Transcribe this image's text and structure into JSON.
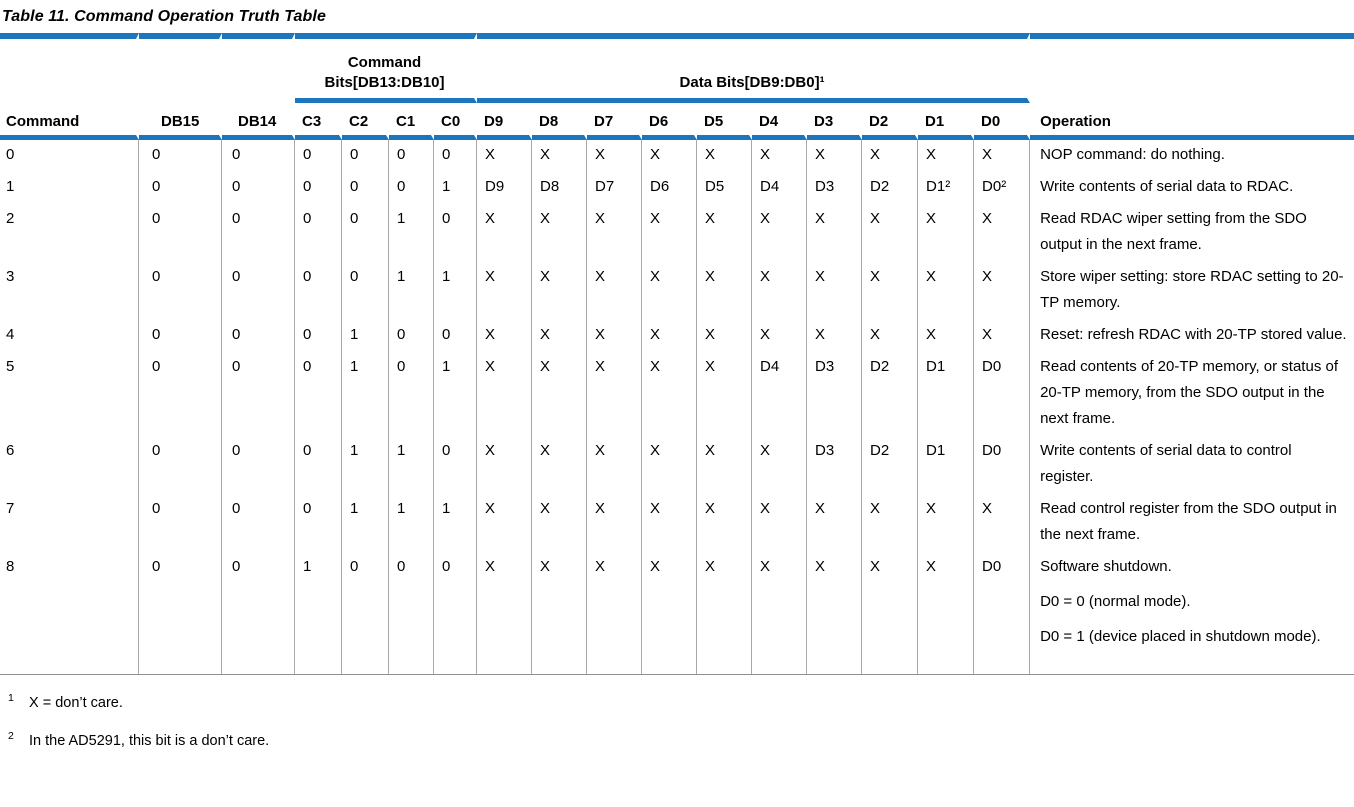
{
  "title": "Table 11. Command Operation Truth Table",
  "colors": {
    "accent_blue": "#1c76bd",
    "grid_gray": "#a8a8a8",
    "bottom_rule_gray": "#8f8f8f",
    "text": "#000000"
  },
  "table": {
    "group_headers": {
      "command_bits_line1": "Command",
      "command_bits_line2": "Bits[DB13:DB10]",
      "data_bits": "Data Bits[DB9:DB0]¹"
    },
    "columns": [
      "Command",
      "DB15",
      "DB14",
      "C3",
      "C2",
      "C1",
      "C0",
      "D9",
      "D8",
      "D7",
      "D6",
      "D5",
      "D4",
      "D3",
      "D2",
      "D1",
      "D0",
      "Operation"
    ],
    "rows": [
      {
        "cells": [
          "0",
          "0",
          "0",
          "0",
          "0",
          "0",
          "0",
          "X",
          "X",
          "X",
          "X",
          "X",
          "X",
          "X",
          "X",
          "X",
          "X"
        ],
        "operation": [
          "NOP command: do nothing."
        ]
      },
      {
        "cells": [
          "1",
          "0",
          "0",
          "0",
          "0",
          "0",
          "1",
          "D9",
          "D8",
          "D7",
          "D6",
          "D5",
          "D4",
          "D3",
          "D2",
          "D1²",
          "D0²"
        ],
        "operation": [
          "Write contents of serial data to RDAC."
        ]
      },
      {
        "cells": [
          "2",
          "0",
          "0",
          "0",
          "0",
          "1",
          "0",
          "X",
          "X",
          "X",
          "X",
          "X",
          "X",
          "X",
          "X",
          "X",
          "X"
        ],
        "operation": [
          "Read RDAC wiper setting from the SDO output in the next frame."
        ]
      },
      {
        "cells": [
          "3",
          "0",
          "0",
          "0",
          "0",
          "1",
          "1",
          "X",
          "X",
          "X",
          "X",
          "X",
          "X",
          "X",
          "X",
          "X",
          "X"
        ],
        "operation": [
          "Store wiper setting: store RDAC setting to 20-TP memory."
        ]
      },
      {
        "cells": [
          "4",
          "0",
          "0",
          "0",
          "1",
          "0",
          "0",
          "X",
          "X",
          "X",
          "X",
          "X",
          "X",
          "X",
          "X",
          "X",
          "X"
        ],
        "operation": [
          "Reset: refresh RDAC with 20-TP stored value."
        ]
      },
      {
        "cells": [
          "5",
          "0",
          "0",
          "0",
          "1",
          "0",
          "1",
          "X",
          "X",
          "X",
          "X",
          "X",
          "D4",
          "D3",
          "D2",
          "D1",
          "D0"
        ],
        "operation": [
          "Read contents of 20-TP memory, or status of 20-TP memory, from the SDO output in the next frame."
        ]
      },
      {
        "cells": [
          "6",
          "0",
          "0",
          "0",
          "1",
          "1",
          "0",
          "X",
          "X",
          "X",
          "X",
          "X",
          "X",
          "D3",
          "D2",
          "D1",
          "D0"
        ],
        "operation": [
          "Write contents of serial data to control register."
        ]
      },
      {
        "cells": [
          "7",
          "0",
          "0",
          "0",
          "1",
          "1",
          "1",
          "X",
          "X",
          "X",
          "X",
          "X",
          "X",
          "X",
          "X",
          "X",
          "X"
        ],
        "operation": [
          "Read control register from the SDO output in the next frame."
        ]
      },
      {
        "cells": [
          "8",
          "0",
          "0",
          "1",
          "0",
          "0",
          "0",
          "X",
          "X",
          "X",
          "X",
          "X",
          "X",
          "X",
          "X",
          "X",
          "D0"
        ],
        "operation": [
          "Software shutdown.",
          "D0 = 0 (normal mode).",
          "D0 = 1 (device placed in shutdown mode)."
        ]
      }
    ]
  },
  "footnotes": [
    {
      "marker": "1",
      "text": "X = don’t care."
    },
    {
      "marker": "2",
      "text": "In the AD5291, this bit is a don’t care."
    }
  ]
}
